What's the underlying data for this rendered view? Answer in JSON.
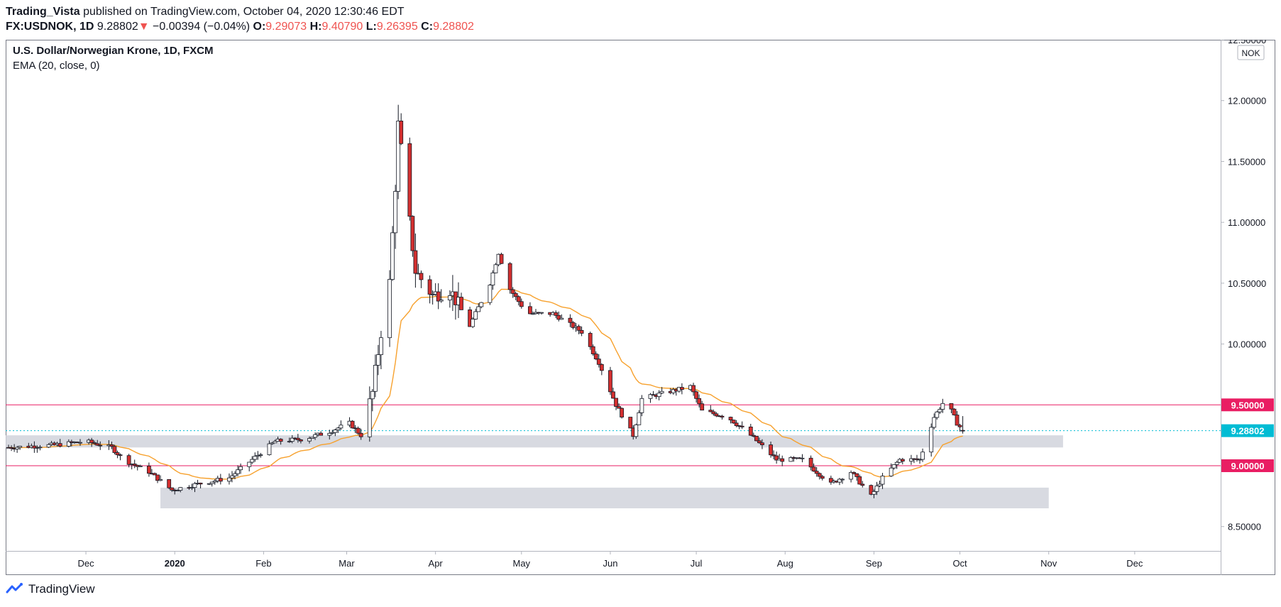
{
  "header": {
    "author": "Trading_Vista",
    "published_text": " published on TradingView.com, October 04, 2020 12:30:46 EDT",
    "symbol": "FX:USDNOK, 1D",
    "last": "9.28802",
    "change": "−0.00394 (−0.04%)",
    "o_label": "O:",
    "o": "9.29073",
    "h_label": "H:",
    "h": "9.40790",
    "l_label": "L:",
    "l": "9.26395",
    "c_label": "C:",
    "c": "9.28802"
  },
  "legend": {
    "title": "U.S. Dollar/Norwegian Krone, 1D, FXCM",
    "indicator": "EMA (20, close, 0)"
  },
  "currency_badge": "NOK",
  "footer": {
    "brand": "TradingView"
  },
  "colors": {
    "up_fill": "#ffffff",
    "down_fill": "#d32f2f",
    "candle_border": "#131722",
    "ema": "#f7a12d",
    "level": "#e91e63",
    "zone": "#d1d4dc",
    "current": "#00bcd4",
    "axis_text": "#131722",
    "axis_line": "#b2b5be"
  },
  "chart_data": {
    "type": "candlestick",
    "title": "U.S. Dollar/Norwegian Krone, 1D, FXCM",
    "indicator": "EMA (20, close, 0)",
    "ylim": [
      8.3,
      12.5
    ],
    "y_ticks": [
      "8.50000",
      "9.00000",
      "9.50000",
      "10.00000",
      "10.50000",
      "11.00000",
      "11.50000",
      "12.00000",
      "12.50000"
    ],
    "x_ticks": [
      {
        "label": "Dec",
        "date": "2019-12-01"
      },
      {
        "label": "2020",
        "date": "2020-01-01",
        "bold": true
      },
      {
        "label": "Feb",
        "date": "2020-02-01"
      },
      {
        "label": "Mar",
        "date": "2020-03-01"
      },
      {
        "label": "Apr",
        "date": "2020-04-01"
      },
      {
        "label": "May",
        "date": "2020-05-01"
      },
      {
        "label": "Jun",
        "date": "2020-06-01"
      },
      {
        "label": "Jul",
        "date": "2020-07-01"
      },
      {
        "label": "Aug",
        "date": "2020-08-01"
      },
      {
        "label": "Sep",
        "date": "2020-09-01"
      },
      {
        "label": "Oct",
        "date": "2020-10-01"
      },
      {
        "label": "Nov",
        "date": "2020-11-01"
      },
      {
        "label": "Dec",
        "date": "2020-12-01"
      }
    ],
    "x_range": [
      "2019-11-03",
      "2020-12-31"
    ],
    "levels": [
      {
        "value": 9.5,
        "label": "9.50000"
      },
      {
        "value": 9.0,
        "label": "9.00000"
      }
    ],
    "current_price": {
      "value": 9.28802,
      "label": "9.28802"
    },
    "zones": [
      {
        "from_date": "2019-11-03",
        "to_date": "2020-11-06",
        "low": 9.15,
        "high": 9.25
      },
      {
        "from_date": "2019-12-27",
        "to_date": "2020-11-01",
        "low": 8.65,
        "high": 8.82
      }
    ],
    "anchors": [
      [
        "2019-11-04",
        9.15
      ],
      [
        "2019-11-20",
        9.17
      ],
      [
        "2019-12-01",
        9.2
      ],
      [
        "2019-12-10",
        9.15
      ],
      [
        "2019-12-14",
        9.05
      ],
      [
        "2019-12-23",
        8.95
      ],
      [
        "2019-12-31",
        8.8
      ],
      [
        "2020-01-09",
        8.85
      ],
      [
        "2020-01-20",
        8.9
      ],
      [
        "2020-01-28",
        9.05
      ],
      [
        "2020-02-05",
        9.2
      ],
      [
        "2020-02-15",
        9.22
      ],
      [
        "2020-02-24",
        9.28
      ],
      [
        "2020-03-02",
        9.35
      ],
      [
        "2020-03-06",
        9.25
      ],
      [
        "2020-03-10",
        9.6
      ],
      [
        "2020-03-13",
        10.1
      ],
      [
        "2020-03-16",
        10.5
      ],
      [
        "2020-03-18",
        11.3
      ],
      [
        "2020-03-19",
        11.8
      ],
      [
        "2020-03-21",
        11.4
      ],
      [
        "2020-03-25",
        10.6
      ],
      [
        "2020-03-31",
        10.4
      ],
      [
        "2020-04-06",
        10.45
      ],
      [
        "2020-04-13",
        10.15
      ],
      [
        "2020-04-20",
        10.5
      ],
      [
        "2020-04-23",
        10.75
      ],
      [
        "2020-04-27",
        10.45
      ],
      [
        "2020-05-03",
        10.25
      ],
      [
        "2020-05-12",
        10.25
      ],
      [
        "2020-05-22",
        10.1
      ],
      [
        "2020-05-28",
        9.85
      ],
      [
        "2020-06-03",
        9.5
      ],
      [
        "2020-06-09",
        9.25
      ],
      [
        "2020-06-12",
        9.55
      ],
      [
        "2020-06-20",
        9.6
      ],
      [
        "2020-06-29",
        9.65
      ],
      [
        "2020-07-03",
        9.45
      ],
      [
        "2020-07-12",
        9.4
      ],
      [
        "2020-07-20",
        9.25
      ],
      [
        "2020-07-29",
        9.05
      ],
      [
        "2020-08-07",
        9.05
      ],
      [
        "2020-08-17",
        8.85
      ],
      [
        "2020-08-24",
        8.95
      ],
      [
        "2020-08-31",
        8.75
      ],
      [
        "2020-09-04",
        8.9
      ],
      [
        "2020-09-10",
        9.05
      ],
      [
        "2020-09-17",
        9.05
      ],
      [
        "2020-09-22",
        9.4
      ],
      [
        "2020-09-26",
        9.55
      ],
      [
        "2020-09-30",
        9.35
      ],
      [
        "2020-10-02",
        9.29
      ]
    ]
  }
}
